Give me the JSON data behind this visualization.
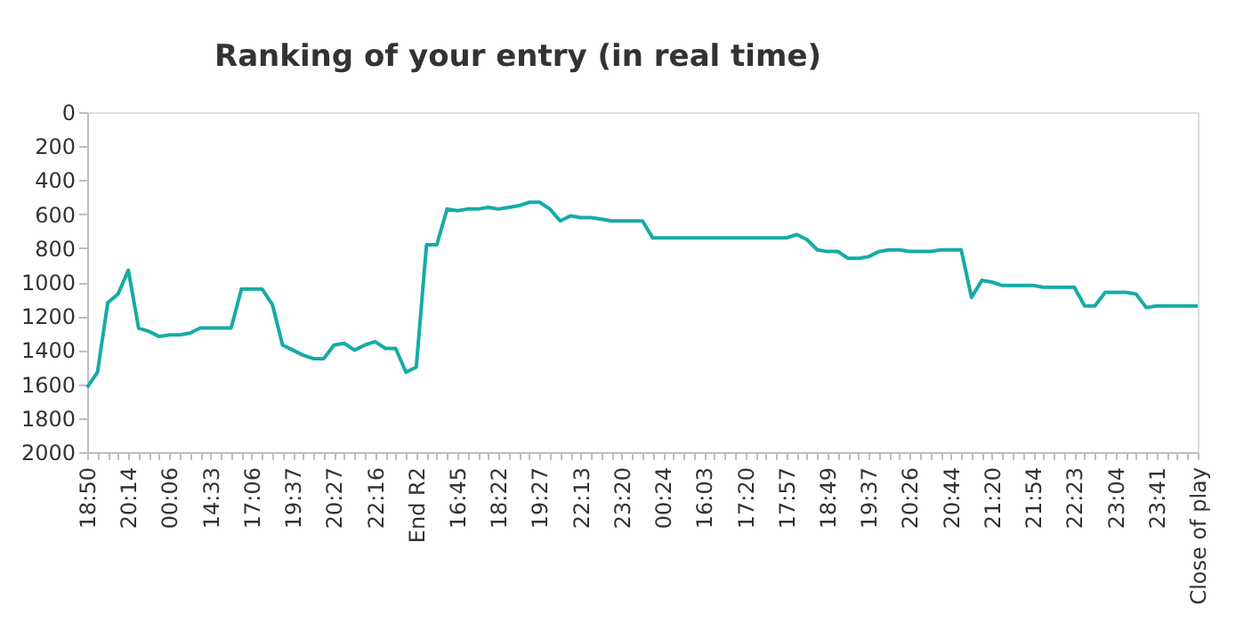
{
  "chart_data": {
    "type": "line",
    "title": "Ranking of your entry (in real time)",
    "categories": [
      "18:50",
      null,
      null,
      null,
      "20:14",
      null,
      null,
      null,
      "00:06",
      null,
      null,
      null,
      "14:33",
      null,
      null,
      null,
      "17:06",
      null,
      null,
      null,
      "19:37",
      null,
      null,
      null,
      "20:27",
      null,
      null,
      null,
      "22:16",
      null,
      null,
      null,
      "End R2",
      null,
      null,
      null,
      "16:45",
      null,
      null,
      null,
      "18:22",
      null,
      null,
      null,
      "19:27",
      null,
      null,
      null,
      "22:13",
      null,
      null,
      null,
      "23:20",
      null,
      null,
      null,
      "00:24",
      null,
      null,
      null,
      "16:03",
      null,
      null,
      null,
      "17:20",
      null,
      null,
      null,
      "17:57",
      null,
      null,
      null,
      "18:49",
      null,
      null,
      null,
      "19:37",
      null,
      null,
      null,
      "20:26",
      null,
      null,
      null,
      "20:44",
      null,
      null,
      null,
      "21:20",
      null,
      null,
      null,
      "21:54",
      null,
      null,
      null,
      "22:23",
      null,
      null,
      null,
      "23:04",
      null,
      null,
      null,
      "23:41",
      null,
      null,
      null,
      "Close of play"
    ],
    "series": [
      {
        "color": "#17aba6",
        "values": [
          1620,
          1530,
          1120,
          1070,
          930,
          1270,
          1290,
          1320,
          1310,
          1310,
          1300,
          1270,
          1270,
          1270,
          1270,
          1040,
          1040,
          1040,
          1130,
          1370,
          1400,
          1430,
          1450,
          1450,
          1370,
          1360,
          1400,
          1370,
          1350,
          1390,
          1390,
          1530,
          1500,
          780,
          780,
          570,
          580,
          570,
          570,
          560,
          570,
          560,
          550,
          530,
          530,
          570,
          640,
          610,
          620,
          620,
          630,
          640,
          640,
          640,
          640,
          740,
          740,
          740,
          740,
          740,
          740,
          740,
          740,
          740,
          740,
          740,
          740,
          740,
          740,
          720,
          750,
          810,
          820,
          820,
          860,
          860,
          850,
          820,
          810,
          810,
          820,
          820,
          820,
          810,
          810,
          810,
          1090,
          990,
          1000,
          1020,
          1020,
          1020,
          1020,
          1030,
          1030,
          1030,
          1030,
          1140,
          1140,
          1060,
          1060,
          1060,
          1070,
          1150,
          1140,
          1140,
          1140,
          1140,
          1140
        ]
      }
    ],
    "ylim": [
      2000,
      0
    ],
    "yticks": [
      0,
      200,
      400,
      600,
      800,
      1000,
      1200,
      1400,
      1600,
      1800,
      2000
    ],
    "grid": false,
    "line_style": "solid"
  }
}
